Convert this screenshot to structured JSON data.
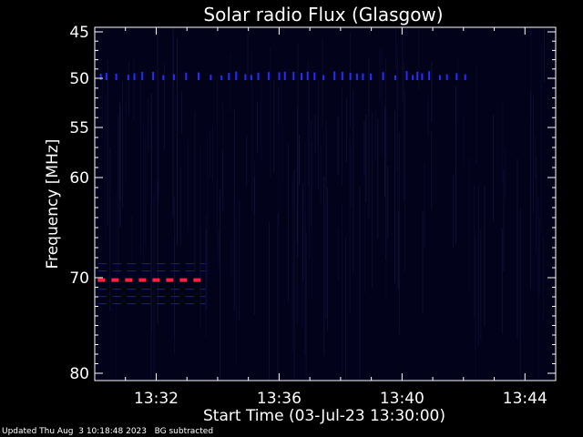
{
  "chart_data": {
    "type": "heatmap",
    "title": "Solar radio Flux (Glasgow)",
    "xlabel": "Start Time (03-Jul-23 13:30:00)",
    "ylabel": "Frequency [MHz]",
    "x_ticks": [
      "13:32",
      "13:36",
      "13:40",
      "13:44"
    ],
    "x_tick_minutes": [
      2,
      6,
      10,
      14
    ],
    "xlim_minutes": [
      0,
      15
    ],
    "y_ticks": [
      45,
      50,
      55,
      60,
      70,
      80
    ],
    "y_tick_positions": [
      0,
      1,
      2,
      3,
      5,
      7
    ],
    "ylim_positions": [
      0,
      7
    ],
    "background_color": "#000000",
    "plot_background_color": "#02031a",
    "features": [
      {
        "label": "50 MHz band",
        "freq_pos": 1.0,
        "minutes": [
          0.2,
          12.2
        ],
        "color": "#2a2aff"
      },
      {
        "label": "70.5 MHz band",
        "freq_pos": 5.05,
        "minutes": [
          0.1,
          3.6
        ],
        "color": "#ff2040"
      }
    ]
  },
  "footer": {
    "updated": "Updated Thu Aug  3 10:18:48 2023",
    "note": "BG subtracted"
  }
}
